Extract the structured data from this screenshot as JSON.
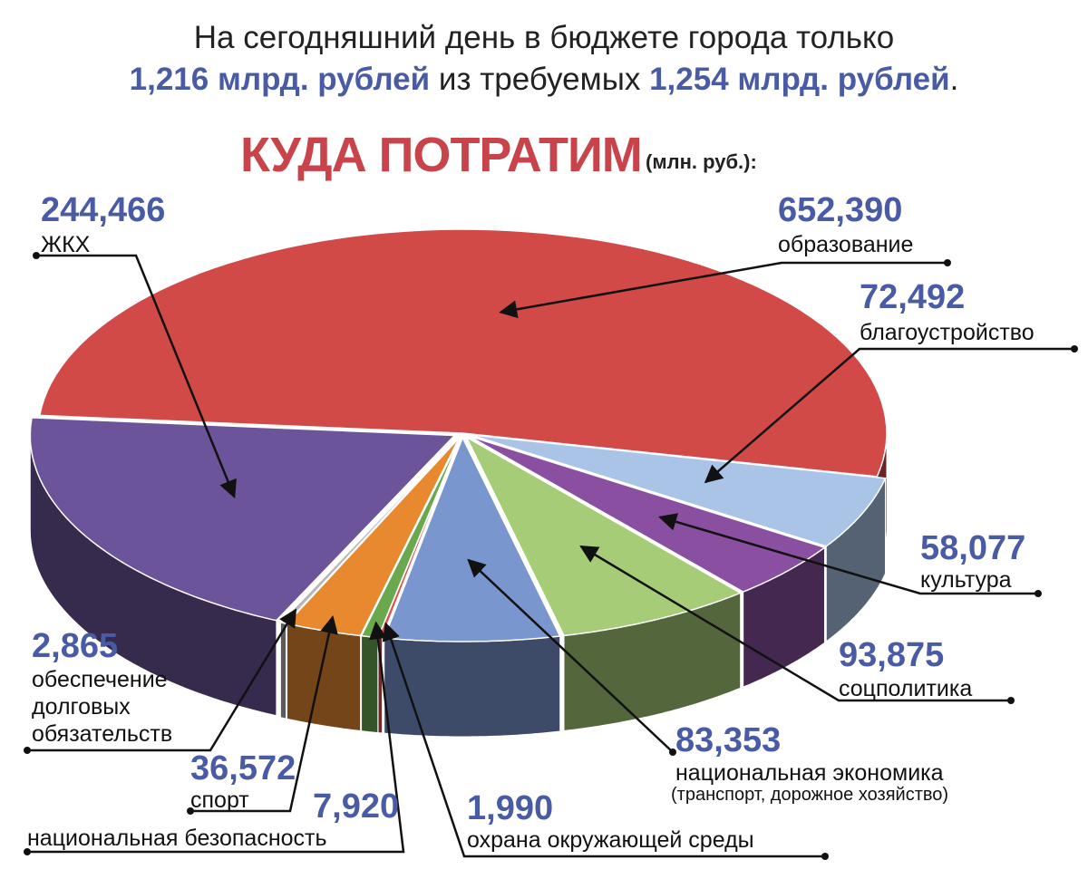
{
  "chart_data": {
    "type": "pie",
    "title": "На сегодняшний день в бюджете города только",
    "title_line2": [
      "1,216 млрд. рублей",
      "из требуемых",
      "1,254 млрд. рублей",
      "."
    ],
    "heading": "КУДА ПОТРАТИМ",
    "unit": "(млн. руб.):",
    "categories": [
      "образование",
      "благоустройство",
      "культура",
      "соцполитика",
      "национальная экономика",
      "охрана окружающей среды",
      "национальная безопасность",
      "спорт",
      "обеспечение долговых обязательств",
      "ЖКХ"
    ],
    "values": [
      652.39,
      72.492,
      58.077,
      93.875,
      83.353,
      1.99,
      7.92,
      36.572,
      2.865,
      244.466
    ],
    "value_labels": [
      "652,390",
      "72,492",
      "58,077",
      "93,875",
      "83,353",
      "1,990",
      "7,920",
      "36,572",
      "2,865",
      "244,466"
    ],
    "colors": [
      "#d24a48",
      "#a9c4e6",
      "#8a4fa0",
      "#a6cc78",
      "#7a96cf",
      "#d9534f",
      "#6aa84f",
      "#e8892f",
      "#b5b5b5",
      "#6b5499"
    ],
    "annotation": "(транспорт, дорожное хозяйство)"
  }
}
